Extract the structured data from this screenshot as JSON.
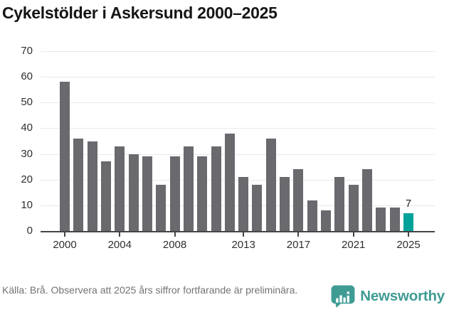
{
  "title": "Cykelstölder i Askersund 2000–2025",
  "footer": {
    "source_text": "Källa: Brå. Observera att 2025 års siffror fortfarande är preliminära.",
    "brand": "Newsworthy"
  },
  "colors": {
    "bar": "#69696E",
    "highlight": "#00A29A",
    "gridline": "#E9E9E9",
    "axis": "#454545",
    "brand_teal": "#3F9B94"
  },
  "chart_data": {
    "type": "bar",
    "title": "Cykelstölder i Askersund 2000–2025",
    "categories": [
      2000,
      2001,
      2002,
      2003,
      2004,
      2005,
      2006,
      2007,
      2008,
      2009,
      2010,
      2011,
      2012,
      2013,
      2014,
      2015,
      2016,
      2017,
      2018,
      2019,
      2020,
      2021,
      2022,
      2023,
      2024,
      2025
    ],
    "values": [
      58,
      36,
      35,
      27,
      33,
      30,
      29,
      18,
      29,
      33,
      29,
      33,
      38,
      21,
      18,
      36,
      21,
      24,
      12,
      8,
      21,
      18,
      24,
      9,
      9,
      7
    ],
    "xlabel": "",
    "ylabel": "",
    "ylim": [
      0,
      70
    ],
    "y_ticks": [
      0,
      10,
      20,
      30,
      40,
      50,
      60,
      70
    ],
    "x_tick_labels": [
      "2000",
      "2004",
      "2008",
      "2013",
      "2017",
      "2021",
      "2025"
    ],
    "x_tick_indices": [
      0,
      4,
      8,
      13,
      17,
      21,
      25
    ],
    "grid": true,
    "legend": "none",
    "highlight_index": 25,
    "value_labels": [
      {
        "index": 25,
        "text": "7"
      }
    ]
  }
}
